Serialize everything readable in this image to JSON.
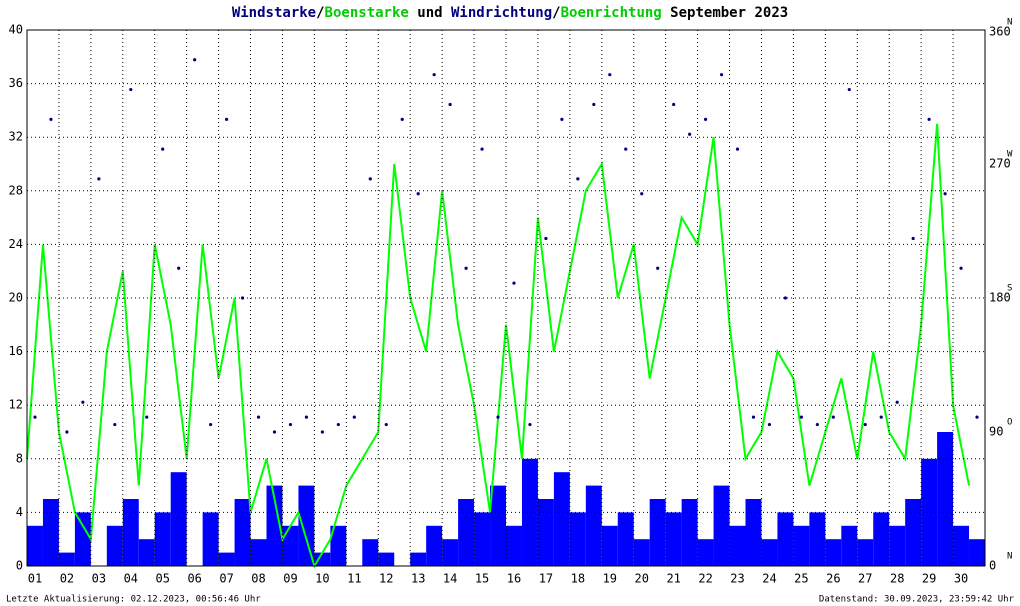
{
  "chart_data": {
    "type": "wind",
    "title_parts": [
      {
        "text": "Windstarke",
        "color": "#000080"
      },
      {
        "text": "/",
        "color": "#000000"
      },
      {
        "text": "Boenstarke",
        "color": "#00cc00"
      },
      {
        "text": " und ",
        "color": "#000000"
      },
      {
        "text": "Windrichtung",
        "color": "#000080"
      },
      {
        "text": "/",
        "color": "#000000"
      },
      {
        "text": "Boenrichtung",
        "color": "#00cc00"
      },
      {
        "text": " September 2023",
        "color": "#000000"
      }
    ],
    "footer_left": "Letzte Aktualisierung: 02.12.2023, 00:56:46 Uhr",
    "footer_right": "Datenstand: 30.09.2023, 23:59:42 Uhr",
    "xlim": [
      1,
      31
    ],
    "xticks": [
      {
        "value": 1,
        "label": "01"
      },
      {
        "value": 2,
        "label": "02"
      },
      {
        "value": 3,
        "label": "03"
      },
      {
        "value": 4,
        "label": "04"
      },
      {
        "value": 5,
        "label": "05"
      },
      {
        "value": 6,
        "label": "06"
      },
      {
        "value": 7,
        "label": "07"
      },
      {
        "value": 8,
        "label": "08"
      },
      {
        "value": 9,
        "label": "09"
      },
      {
        "value": 10,
        "label": "10"
      },
      {
        "value": 11,
        "label": "11"
      },
      {
        "value": 12,
        "label": "12"
      },
      {
        "value": 13,
        "label": "13"
      },
      {
        "value": 14,
        "label": "14"
      },
      {
        "value": 15,
        "label": "15"
      },
      {
        "value": 16,
        "label": "16"
      },
      {
        "value": 17,
        "label": "17"
      },
      {
        "value": 18,
        "label": "18"
      },
      {
        "value": 19,
        "label": "19"
      },
      {
        "value": 20,
        "label": "20"
      },
      {
        "value": 21,
        "label": "21"
      },
      {
        "value": 22,
        "label": "22"
      },
      {
        "value": 23,
        "label": "23"
      },
      {
        "value": 24,
        "label": "24"
      },
      {
        "value": 25,
        "label": "25"
      },
      {
        "value": 26,
        "label": "26"
      },
      {
        "value": 27,
        "label": "27"
      },
      {
        "value": 28,
        "label": "28"
      },
      {
        "value": 29,
        "label": "29"
      },
      {
        "value": 30,
        "label": "30"
      }
    ],
    "ylim": [
      0,
      40
    ],
    "yticks": [
      0,
      4,
      8,
      12,
      16,
      20,
      24,
      28,
      32,
      36,
      40
    ],
    "y2lim": [
      0,
      360
    ],
    "y2ticks": [
      0,
      90,
      180,
      270,
      360
    ],
    "y2tick_dirs": [
      "N",
      "O",
      "S",
      "W",
      "N"
    ],
    "grid": true,
    "x": [
      1,
      1.5,
      2,
      2.5,
      3,
      3.5,
      4,
      4.5,
      5,
      5.5,
      6,
      6.5,
      7,
      7.5,
      8,
      8.5,
      9,
      9.5,
      10,
      10.5,
      11,
      11.5,
      12,
      12.5,
      13,
      13.5,
      14,
      14.5,
      15,
      15.5,
      16,
      16.5,
      17,
      17.5,
      18,
      18.5,
      19,
      19.5,
      20,
      20.5,
      21,
      21.5,
      22,
      22.5,
      23,
      23.5,
      24,
      24.5,
      25,
      25.5,
      26,
      26.5,
      27,
      27.5,
      28,
      28.5,
      29,
      29.5,
      30,
      30.5
    ],
    "series": [
      {
        "name": "Windstarke",
        "color": "#0000ff",
        "values": [
          3,
          5,
          1,
          4,
          0,
          3,
          5,
          2,
          4,
          7,
          0,
          4,
          1,
          5,
          2,
          6,
          3,
          6,
          1,
          3,
          0,
          2,
          1,
          0,
          1,
          3,
          2,
          5,
          4,
          6,
          3,
          8,
          5,
          7,
          4,
          6,
          3,
          4,
          2,
          5,
          4,
          5,
          2,
          6,
          3,
          5,
          2,
          4,
          3,
          4,
          2,
          3,
          2,
          4,
          3,
          5,
          8,
          10,
          3,
          2
        ]
      },
      {
        "name": "Boenstarke",
        "color": "#00ff00",
        "values": [
          8,
          24,
          10,
          4,
          2,
          16,
          22,
          6,
          24,
          18,
          8,
          24,
          14,
          20,
          4,
          8,
          2,
          4,
          0,
          2,
          6,
          8,
          10,
          30,
          20,
          16,
          28,
          18,
          12,
          4,
          18,
          8,
          26,
          16,
          22,
          28,
          30,
          20,
          24,
          14,
          20,
          26,
          24,
          32,
          18,
          8,
          10,
          16,
          14,
          6,
          10,
          14,
          8,
          16,
          10,
          8,
          18,
          33,
          12,
          6
        ]
      },
      {
        "name": "Windrichtung",
        "color": "#000080",
        "axis": "y2",
        "values": [
          100,
          300,
          90,
          110,
          260,
          95,
          320,
          100,
          280,
          200,
          340,
          95,
          300,
          180,
          100,
          90,
          95,
          100,
          90,
          95,
          100,
          260,
          95,
          300,
          250,
          330,
          310,
          200,
          280,
          100,
          190,
          95,
          220,
          300,
          260,
          310,
          330,
          280,
          250,
          200,
          310,
          290,
          300,
          330,
          280,
          100,
          95,
          180,
          100,
          95,
          100,
          320,
          95,
          100,
          110,
          220,
          300,
          250,
          200,
          100
        ]
      }
    ]
  }
}
